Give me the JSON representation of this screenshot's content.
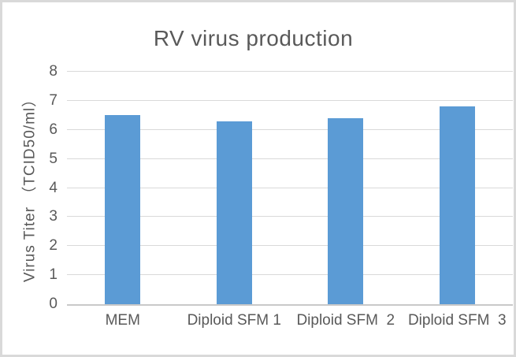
{
  "chart_data": {
    "type": "bar",
    "title": "RV virus production",
    "categories": [
      "MEM",
      "Diploid SFM 1",
      "Diploid SFM  2",
      "Diploid SFM  3"
    ],
    "values": [
      6.5,
      6.3,
      6.4,
      6.8
    ],
    "xlabel": "",
    "ylabel": "Virus Titer （TCID50/ml）",
    "ylim": [
      0,
      8
    ],
    "yticks": [
      0,
      1,
      2,
      3,
      4,
      5,
      6,
      7,
      8
    ],
    "grid": "horizontal",
    "legend": false,
    "colors": {
      "bar": "#5B9BD5",
      "text": "#595959",
      "gridline": "#D9D9D9",
      "axis_line": "#C9C9C9",
      "frame_border": "#D9D9D9",
      "background": "#FFFFFF"
    }
  }
}
